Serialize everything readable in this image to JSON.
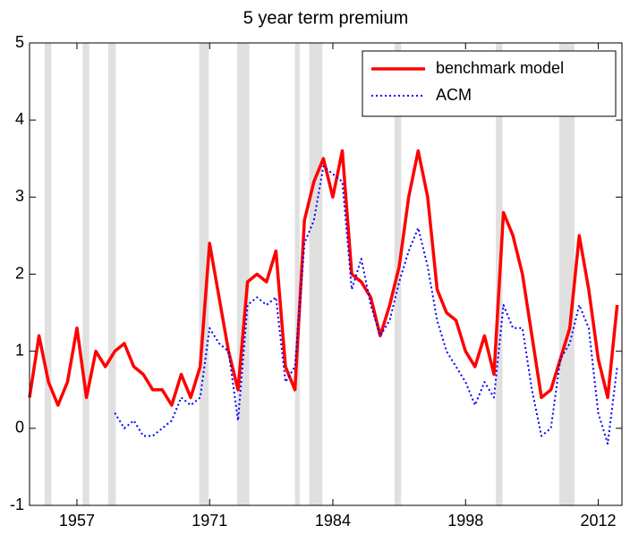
{
  "chart_data": {
    "type": "line",
    "title": "5 year term premium",
    "x": [
      1952,
      1953,
      1954,
      1955,
      1956,
      1957,
      1958,
      1959,
      1960,
      1961,
      1962,
      1963,
      1964,
      1965,
      1966,
      1967,
      1968,
      1969,
      1970,
      1971,
      1972,
      1973,
      1974,
      1975,
      1976,
      1977,
      1978,
      1979,
      1980,
      1981,
      1982,
      1983,
      1984,
      1985,
      1986,
      1987,
      1988,
      1989,
      1990,
      1991,
      1992,
      1993,
      1994,
      1995,
      1996,
      1997,
      1998,
      1999,
      2000,
      2001,
      2002,
      2003,
      2004,
      2005,
      2006,
      2007,
      2008,
      2009,
      2010,
      2011,
      2012,
      2013,
      2014
    ],
    "series": [
      {
        "name": "benchmark model",
        "color": "#ff0000",
        "style": "solid",
        "values": [
          0.4,
          1.2,
          0.6,
          0.3,
          0.6,
          1.3,
          0.4,
          1.0,
          0.8,
          1.0,
          1.1,
          0.8,
          0.7,
          0.5,
          0.5,
          0.3,
          0.7,
          0.4,
          0.8,
          2.4,
          1.7,
          1.0,
          0.5,
          1.9,
          2.0,
          1.9,
          2.3,
          0.8,
          0.5,
          2.7,
          3.2,
          3.5,
          3.0,
          3.6,
          2.0,
          1.9,
          1.7,
          1.2,
          1.6,
          2.1,
          3.0,
          3.6,
          3.0,
          1.8,
          1.5,
          1.4,
          1.0,
          0.8,
          1.2,
          0.7,
          2.8,
          2.5,
          2.0,
          1.2,
          0.4,
          0.5,
          0.9,
          1.3,
          2.5,
          1.8,
          0.9,
          0.4,
          1.6
        ]
      },
      {
        "name": "ACM",
        "color": "#0000ff",
        "style": "dotted",
        "values": [
          null,
          null,
          null,
          null,
          null,
          null,
          null,
          null,
          null,
          0.2,
          0.0,
          0.1,
          -0.1,
          -0.1,
          0.0,
          0.1,
          0.4,
          0.3,
          0.4,
          1.3,
          1.1,
          1.0,
          0.1,
          1.6,
          1.7,
          1.6,
          1.7,
          0.6,
          0.8,
          2.4,
          2.7,
          3.4,
          3.3,
          3.2,
          1.8,
          2.2,
          1.6,
          1.2,
          1.4,
          1.9,
          2.3,
          2.6,
          2.1,
          1.4,
          1.0,
          0.8,
          0.6,
          0.3,
          0.6,
          0.4,
          1.6,
          1.3,
          1.3,
          0.5,
          -0.1,
          0.0,
          0.9,
          1.1,
          1.6,
          1.3,
          0.2,
          -0.2,
          0.8
        ]
      }
    ],
    "recessions": [
      [
        1953.6,
        1954.3
      ],
      [
        1957.6,
        1958.3
      ],
      [
        1960.3,
        1961.1
      ],
      [
        1969.9,
        1970.9
      ],
      [
        1973.9,
        1975.2
      ],
      [
        1980.0,
        1980.5
      ],
      [
        1981.5,
        1982.9
      ],
      [
        1990.5,
        1991.2
      ],
      [
        2001.2,
        2001.9
      ],
      [
        2007.9,
        2009.5
      ]
    ],
    "recession_color": "#e0e0e0",
    "xlim": [
      1952,
      2014.5
    ],
    "ylim": [
      -1,
      5
    ],
    "xticks": [
      1957,
      1971,
      1984,
      1998,
      2012
    ],
    "yticks": [
      -1,
      0,
      1,
      2,
      3,
      4,
      5
    ],
    "legend": "northeast"
  }
}
